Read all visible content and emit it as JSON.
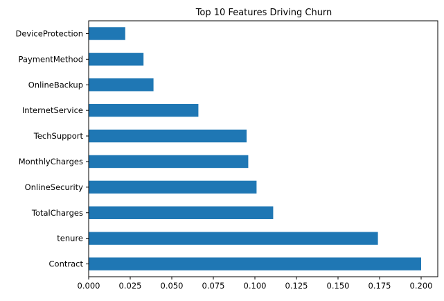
{
  "chart_data": {
    "type": "bar",
    "orientation": "horizontal",
    "title": "Top 10 Features Driving Churn",
    "xlabel": "",
    "ylabel": "",
    "categories": [
      "Contract",
      "tenure",
      "TotalCharges",
      "OnlineSecurity",
      "MonthlyCharges",
      "TechSupport",
      "InternetService",
      "OnlineBackup",
      "PaymentMethod",
      "DeviceProtection"
    ],
    "values": [
      0.2,
      0.174,
      0.111,
      0.101,
      0.096,
      0.095,
      0.066,
      0.039,
      0.033,
      0.022
    ],
    "xlim": [
      0.0,
      0.21
    ],
    "xticks": [
      0.0,
      0.025,
      0.05,
      0.075,
      0.1,
      0.125,
      0.15,
      0.175,
      0.2
    ],
    "xtick_labels": [
      "0.000",
      "0.025",
      "0.050",
      "0.075",
      "0.100",
      "0.125",
      "0.150",
      "0.175",
      "0.200"
    ],
    "bar_color": "#1f77b4",
    "grid": false,
    "legend": "none"
  }
}
